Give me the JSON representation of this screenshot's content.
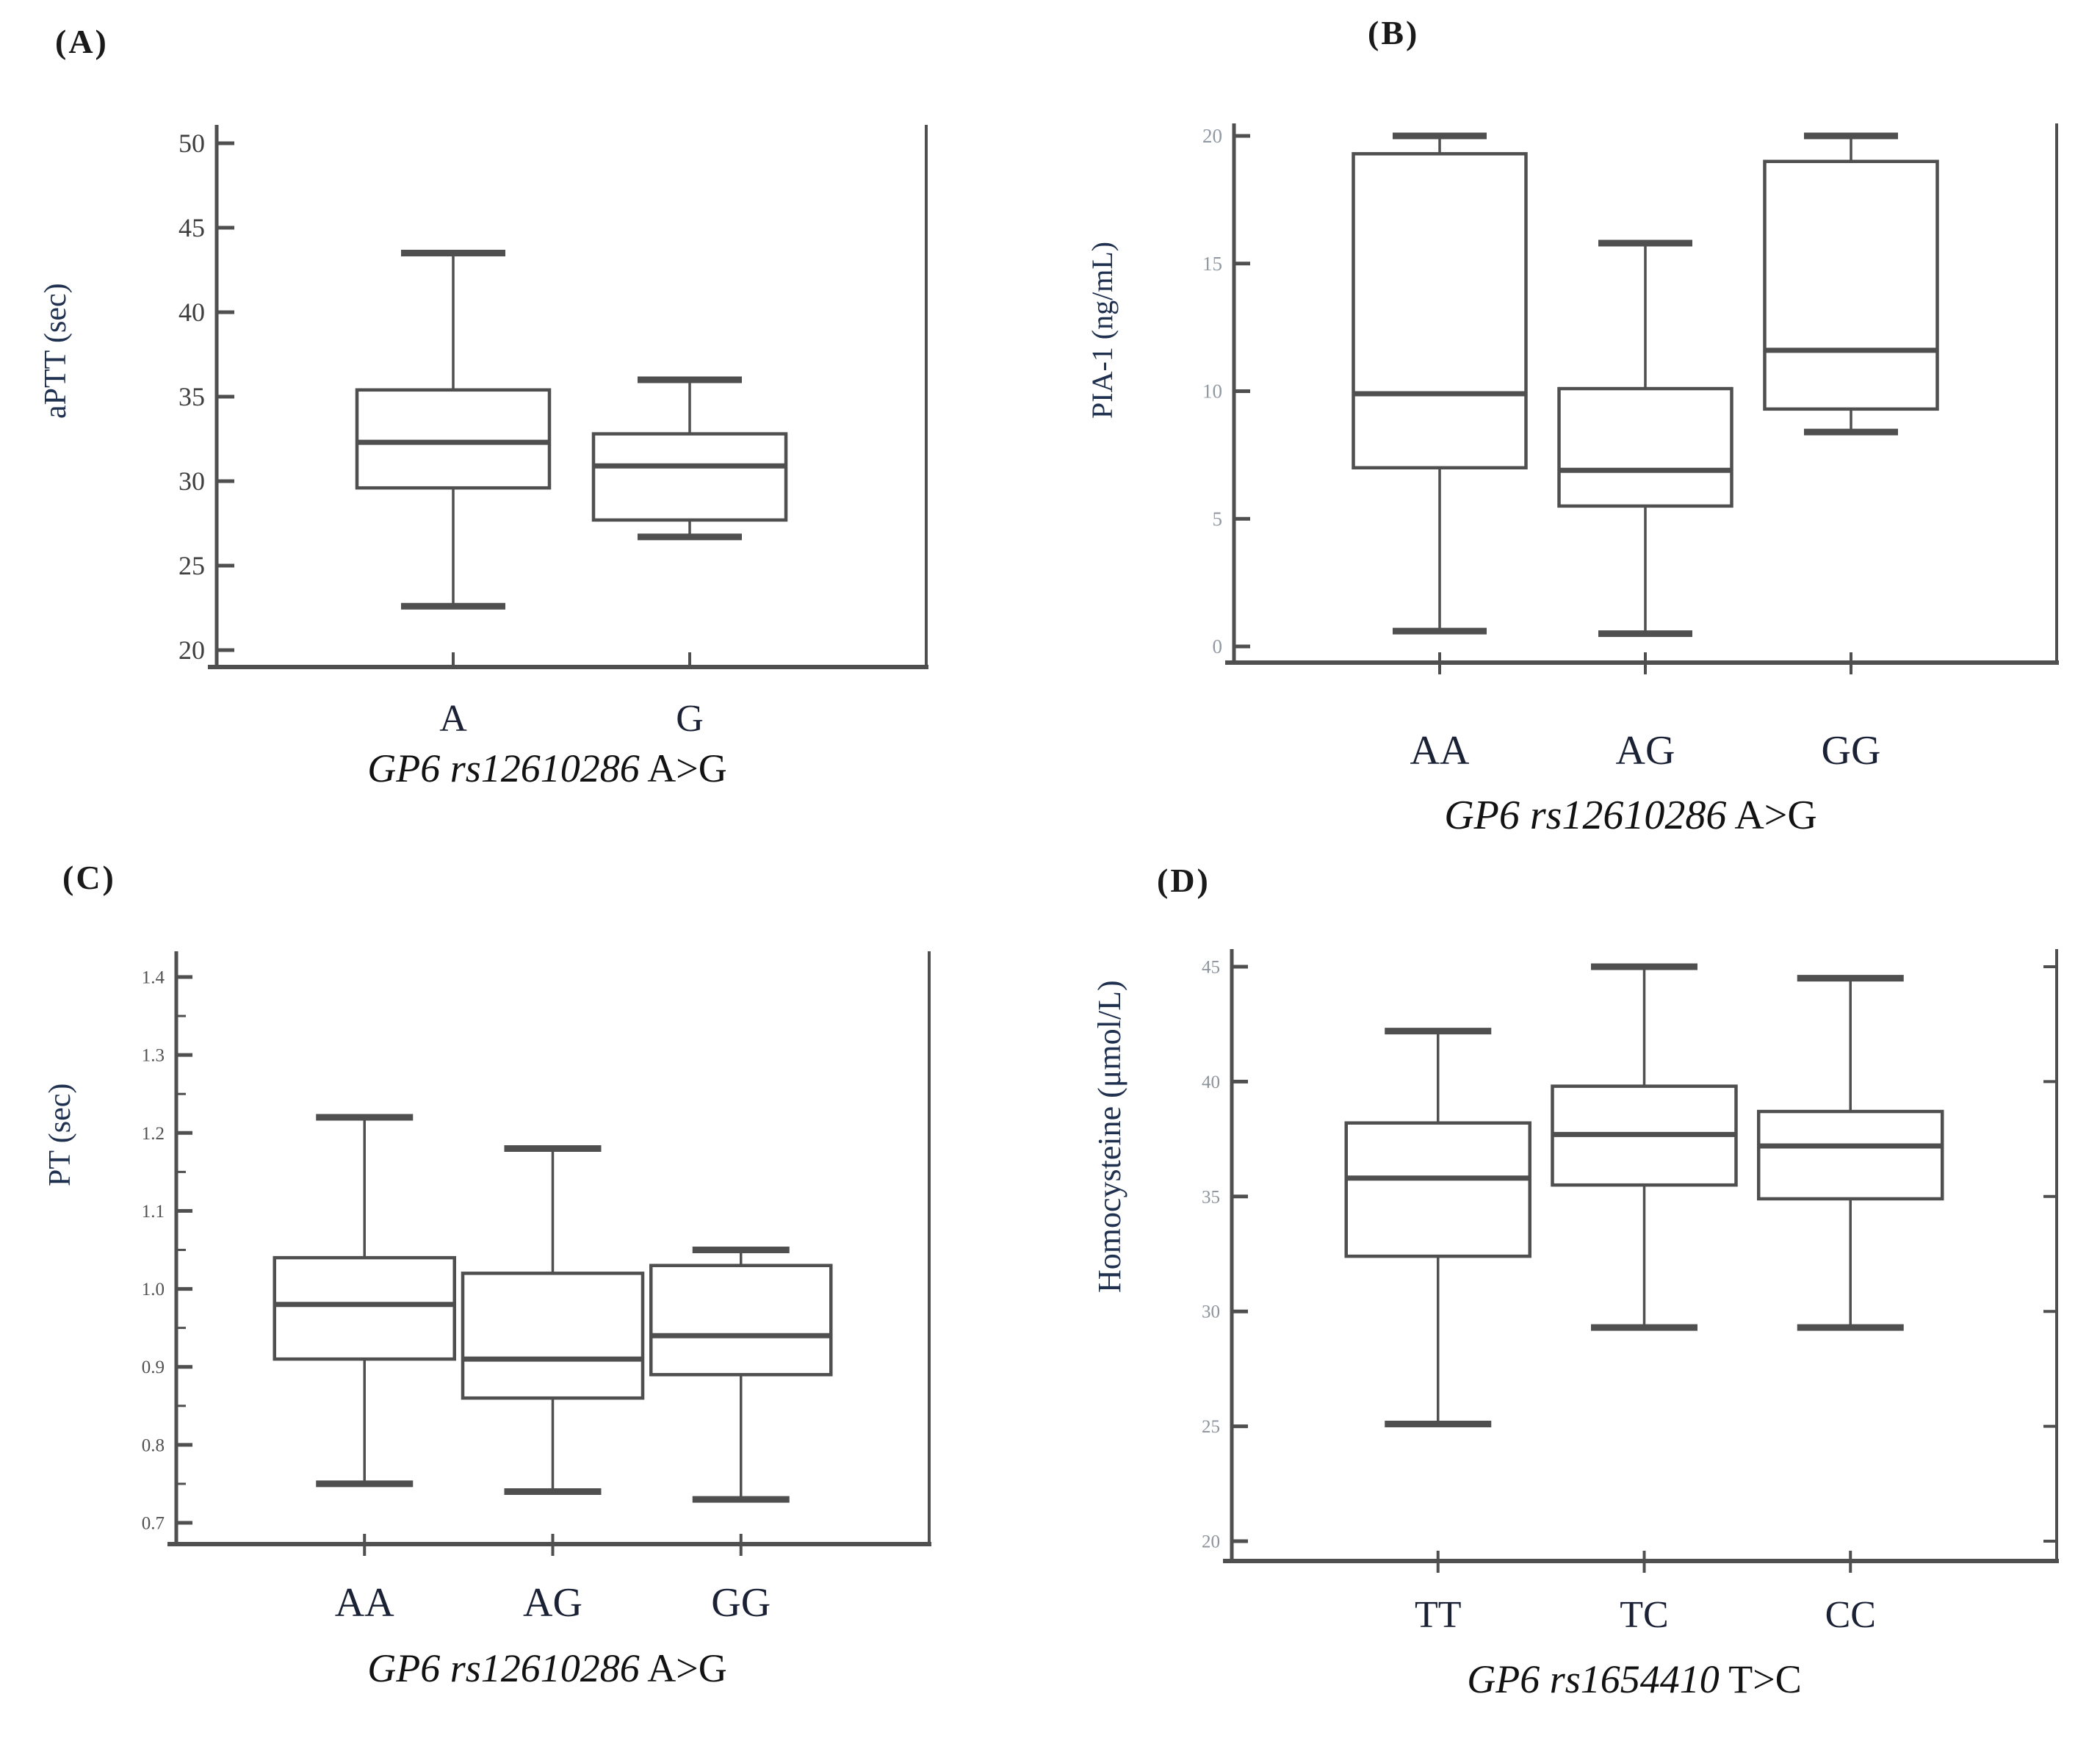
{
  "colors": {
    "background": "#ffffff",
    "line": "#4f4f4f",
    "axis": "#4a4a4a",
    "tick_labels": [
      "#3e3e3e",
      "#9299a3",
      "#515151",
      "#8d939c"
    ],
    "category_label": "#1b2235",
    "ylabel": "#20304f",
    "title": "#121212"
  },
  "chart_data": [
    {
      "type": "boxplot",
      "panel": "A",
      "tag": "(A)",
      "ylabel": "aPTT (sec)",
      "xlabel": {
        "italic": "GP6 rs12610286",
        "rest": " A>G",
        "full": "GP6 rs12610286 A>G"
      },
      "ylim": [
        20,
        50
      ],
      "ytick_step": 5,
      "ytick_decimals": 0,
      "minor_ticks": false,
      "grid": false,
      "categories": [
        "A",
        "G"
      ],
      "boxes": [
        {
          "category": "A",
          "whisker_low": 22.6,
          "q1": 29.6,
          "median": 32.3,
          "q3": 35.4,
          "whisker_high": 43.5
        },
        {
          "category": "G",
          "whisker_low": 26.7,
          "q1": 27.7,
          "median": 30.9,
          "q3": 32.8,
          "whisker_high": 36.0
        }
      ]
    },
    {
      "type": "boxplot",
      "panel": "B",
      "tag": "(B)",
      "ylabel": "PIA-1 (ng/mL)",
      "xlabel": {
        "italic": "GP6 rs12610286",
        "rest": " A>G",
        "full": "GP6 rs12610286 A>G"
      },
      "ylim": [
        0,
        20
      ],
      "ytick_step": 5,
      "ytick_decimals": 0,
      "minor_ticks": false,
      "grid": false,
      "categories": [
        "AA",
        "AG",
        "GG"
      ],
      "boxes": [
        {
          "category": "AA",
          "whisker_low": 0.6,
          "q1": 7.0,
          "median": 9.9,
          "q3": 19.3,
          "whisker_high": 20.0
        },
        {
          "category": "AG",
          "whisker_low": 0.5,
          "q1": 5.5,
          "median": 6.9,
          "q3": 10.1,
          "whisker_high": 15.8
        },
        {
          "category": "GG",
          "whisker_low": 8.4,
          "q1": 9.3,
          "median": 11.6,
          "q3": 19.0,
          "whisker_high": 20.0
        }
      ]
    },
    {
      "type": "boxplot",
      "panel": "C",
      "tag": "(C)",
      "ylabel": "PT (sec)",
      "xlabel": {
        "italic": "GP6 rs12610286",
        "rest": " A>G",
        "full": "GP6 rs12610286 A>G"
      },
      "ylim": [
        0.7,
        1.4
      ],
      "ytick_step": 0.1,
      "ytick_decimals": 1,
      "minor_ticks": true,
      "grid": false,
      "categories": [
        "AA",
        "AG",
        "GG"
      ],
      "boxes": [
        {
          "category": "AA",
          "whisker_low": 0.75,
          "q1": 0.91,
          "median": 0.98,
          "q3": 1.04,
          "whisker_high": 1.22
        },
        {
          "category": "AG",
          "whisker_low": 0.74,
          "q1": 0.86,
          "median": 0.91,
          "q3": 1.02,
          "whisker_high": 1.18
        },
        {
          "category": "GG",
          "whisker_low": 0.73,
          "q1": 0.89,
          "median": 0.94,
          "q3": 1.03,
          "whisker_high": 1.05
        }
      ]
    },
    {
      "type": "boxplot",
      "panel": "D",
      "tag": "(D)",
      "ylabel": "Homocysteine (μmol/L)",
      "xlabel": {
        "italic": "GP6 rs1654410",
        "rest": " T>C",
        "full": "GP6 rs1654410 T>C"
      },
      "ylim": [
        20,
        45
      ],
      "ytick_step": 5,
      "ytick_decimals": 0,
      "minor_ticks": false,
      "grid": false,
      "categories": [
        "TT",
        "TC",
        "CC"
      ],
      "boxes": [
        {
          "category": "TT",
          "whisker_low": 25.1,
          "q1": 32.4,
          "median": 35.8,
          "q3": 38.2,
          "whisker_high": 42.2
        },
        {
          "category": "TC",
          "whisker_low": 29.3,
          "q1": 35.5,
          "median": 37.7,
          "q3": 39.8,
          "whisker_high": 45.0
        },
        {
          "category": "CC",
          "whisker_low": 29.3,
          "q1": 34.9,
          "median": 37.2,
          "q3": 38.7,
          "whisker_high": 44.5
        }
      ]
    }
  ]
}
